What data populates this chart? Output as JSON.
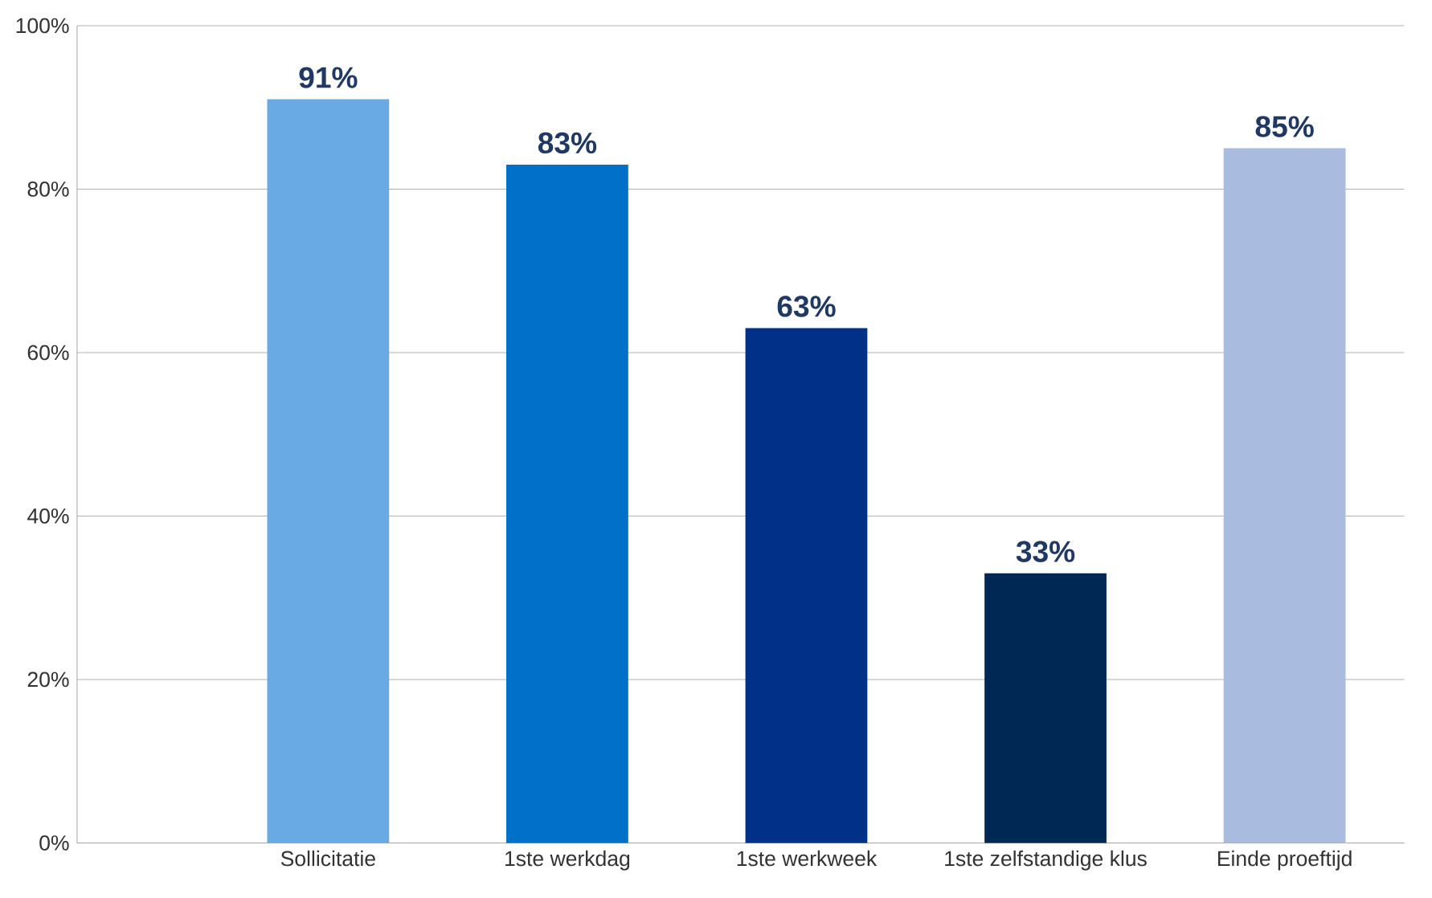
{
  "chart_data": {
    "type": "bar",
    "categories": [
      "Sollicitatie",
      "1ste werkdag",
      "1ste werkweek",
      "1ste zelfstandige klus",
      "Einde proeftijd"
    ],
    "values": [
      91,
      83,
      63,
      33,
      85
    ],
    "colors": [
      "#6aaae4",
      "#0070c8",
      "#003087",
      "#002855",
      "#a9bce0"
    ],
    "value_labels": [
      "91%",
      "83%",
      "63%",
      "33%",
      "85%"
    ],
    "ylim": [
      0,
      100
    ],
    "yticks": [
      {
        "value": 0,
        "label": "0%"
      },
      {
        "value": 20,
        "label": "20%"
      },
      {
        "value": 40,
        "label": "40%"
      },
      {
        "value": 60,
        "label": "60%"
      },
      {
        "value": 80,
        "label": "80%"
      },
      {
        "value": 100,
        "label": "100%"
      }
    ],
    "grid": "y"
  }
}
